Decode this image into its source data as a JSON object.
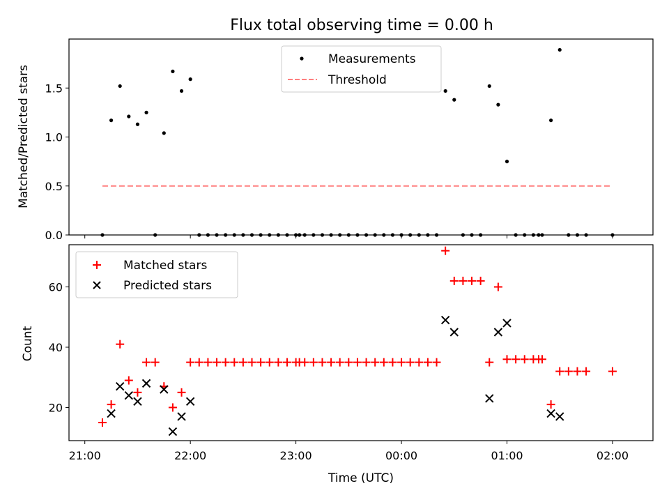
{
  "chart_data": [
    {
      "type": "scatter",
      "title": "Flux total observing time = 0.00 h",
      "ylabel": "Matched/Predicted stars",
      "xlabel": "",
      "ylim": [
        0,
        2.0
      ],
      "yticks": [
        "0.0",
        "0.5",
        "1.0",
        "1.5"
      ],
      "grid": false,
      "legend_position": "top-center",
      "series": [
        {
          "name": "Measurements",
          "marker": "dot",
          "color": "#000000",
          "points": [
            [
              "21:10",
              0.0
            ],
            [
              "21:15",
              1.17
            ],
            [
              "21:20",
              1.52
            ],
            [
              "21:25",
              1.21
            ],
            [
              "21:30",
              1.13
            ],
            [
              "21:35",
              1.25
            ],
            [
              "21:40",
              0.0
            ],
            [
              "21:45",
              1.04
            ],
            [
              "21:50",
              1.67
            ],
            [
              "21:55",
              1.47
            ],
            [
              "22:00",
              1.59
            ],
            [
              "22:05",
              0.0
            ],
            [
              "22:10",
              0.0
            ],
            [
              "22:15",
              0.0
            ],
            [
              "22:20",
              0.0
            ],
            [
              "22:25",
              0.0
            ],
            [
              "22:30",
              0.0
            ],
            [
              "22:35",
              0.0
            ],
            [
              "22:40",
              0.0
            ],
            [
              "22:45",
              0.0
            ],
            [
              "22:50",
              0.0
            ],
            [
              "22:55",
              0.0
            ],
            [
              "23:00",
              0.0
            ],
            [
              "23:02",
              0.0
            ],
            [
              "23:05",
              0.0
            ],
            [
              "23:10",
              0.0
            ],
            [
              "23:15",
              0.0
            ],
            [
              "23:20",
              0.0
            ],
            [
              "23:25",
              0.0
            ],
            [
              "23:30",
              0.0
            ],
            [
              "23:35",
              0.0
            ],
            [
              "23:40",
              0.0
            ],
            [
              "23:45",
              0.0
            ],
            [
              "23:50",
              0.0
            ],
            [
              "23:55",
              0.0
            ],
            [
              "00:00",
              0.0
            ],
            [
              "00:05",
              0.0
            ],
            [
              "00:10",
              0.0
            ],
            [
              "00:15",
              0.0
            ],
            [
              "00:20",
              0.0
            ],
            [
              "00:25",
              1.47
            ],
            [
              "00:30",
              1.38
            ],
            [
              "00:35",
              0.0
            ],
            [
              "00:40",
              0.0
            ],
            [
              "00:45",
              0.0
            ],
            [
              "00:50",
              1.52
            ],
            [
              "00:55",
              1.33
            ],
            [
              "01:00",
              0.75
            ],
            [
              "01:05",
              0.0
            ],
            [
              "01:10",
              0.0
            ],
            [
              "01:15",
              0.0
            ],
            [
              "01:18",
              0.0
            ],
            [
              "01:20",
              0.0
            ],
            [
              "01:25",
              1.17
            ],
            [
              "01:30",
              1.89
            ],
            [
              "01:35",
              0.0
            ],
            [
              "01:40",
              0.0
            ],
            [
              "01:45",
              0.0
            ],
            [
              "02:00",
              0.0
            ]
          ]
        },
        {
          "name": "Threshold",
          "style": "dashed-line",
          "color": "#ff7f7f",
          "x": [
            "21:10",
            "02:00"
          ],
          "y": [
            0.5,
            0.5
          ]
        }
      ]
    },
    {
      "type": "scatter",
      "title": "",
      "ylabel": "Count",
      "xlabel": "Time (UTC)",
      "ylim": [
        9,
        74
      ],
      "yticks": [
        "20",
        "40",
        "60"
      ],
      "xticks": [
        "21:00",
        "22:00",
        "23:00",
        "00:00",
        "01:00",
        "02:00"
      ],
      "grid": false,
      "legend_position": "top-left",
      "series": [
        {
          "name": "Matched stars",
          "marker": "plus",
          "color": "#ff0000",
          "points": [
            [
              "21:10",
              15
            ],
            [
              "21:15",
              21
            ],
            [
              "21:20",
              41
            ],
            [
              "21:25",
              29
            ],
            [
              "21:30",
              25
            ],
            [
              "21:35",
              35
            ],
            [
              "21:40",
              35
            ],
            [
              "21:45",
              27
            ],
            [
              "21:50",
              20
            ],
            [
              "21:55",
              25
            ],
            [
              "22:00",
              35
            ],
            [
              "22:05",
              35
            ],
            [
              "22:10",
              35
            ],
            [
              "22:15",
              35
            ],
            [
              "22:20",
              35
            ],
            [
              "22:25",
              35
            ],
            [
              "22:30",
              35
            ],
            [
              "22:35",
              35
            ],
            [
              "22:40",
              35
            ],
            [
              "22:45",
              35
            ],
            [
              "22:50",
              35
            ],
            [
              "22:55",
              35
            ],
            [
              "23:00",
              35
            ],
            [
              "23:02",
              35
            ],
            [
              "23:05",
              35
            ],
            [
              "23:10",
              35
            ],
            [
              "23:15",
              35
            ],
            [
              "23:20",
              35
            ],
            [
              "23:25",
              35
            ],
            [
              "23:30",
              35
            ],
            [
              "23:35",
              35
            ],
            [
              "23:40",
              35
            ],
            [
              "23:45",
              35
            ],
            [
              "23:50",
              35
            ],
            [
              "23:55",
              35
            ],
            [
              "00:00",
              35
            ],
            [
              "00:05",
              35
            ],
            [
              "00:10",
              35
            ],
            [
              "00:15",
              35
            ],
            [
              "00:20",
              35
            ],
            [
              "00:25",
              72
            ],
            [
              "00:30",
              62
            ],
            [
              "00:35",
              62
            ],
            [
              "00:40",
              62
            ],
            [
              "00:45",
              62
            ],
            [
              "00:50",
              35
            ],
            [
              "00:55",
              60
            ],
            [
              "01:00",
              36
            ],
            [
              "01:05",
              36
            ],
            [
              "01:10",
              36
            ],
            [
              "01:15",
              36
            ],
            [
              "01:18",
              36
            ],
            [
              "01:20",
              36
            ],
            [
              "01:25",
              21
            ],
            [
              "01:30",
              32
            ],
            [
              "01:35",
              32
            ],
            [
              "01:40",
              32
            ],
            [
              "01:45",
              32
            ],
            [
              "02:00",
              32
            ]
          ]
        },
        {
          "name": "Predicted stars",
          "marker": "x",
          "color": "#000000",
          "points": [
            [
              "21:15",
              18
            ],
            [
              "21:20",
              27
            ],
            [
              "21:25",
              24
            ],
            [
              "21:30",
              22
            ],
            [
              "21:35",
              28
            ],
            [
              "21:45",
              26
            ],
            [
              "21:50",
              12
            ],
            [
              "21:55",
              17
            ],
            [
              "22:00",
              22
            ],
            [
              "00:25",
              49
            ],
            [
              "00:30",
              45
            ],
            [
              "00:50",
              23
            ],
            [
              "00:55",
              45
            ],
            [
              "01:00",
              48
            ],
            [
              "01:25",
              18
            ],
            [
              "01:30",
              17
            ]
          ]
        }
      ]
    }
  ]
}
